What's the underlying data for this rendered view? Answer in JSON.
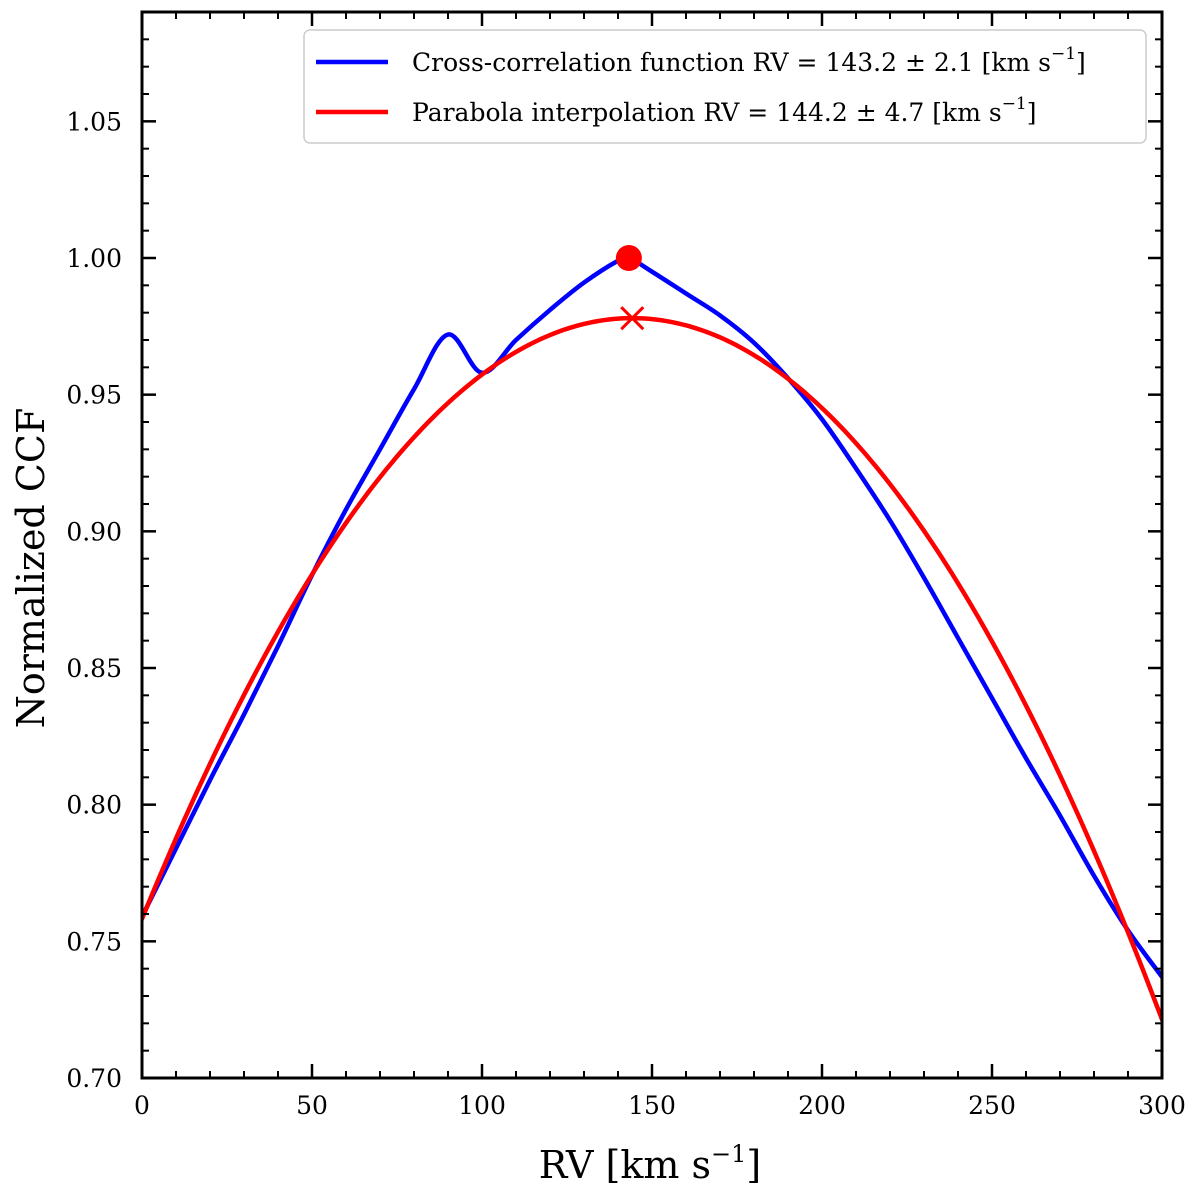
{
  "chart_data": {
    "type": "line",
    "title": "",
    "xlabel": "RV [km s",
    "xlabel_sup": "−1",
    "xlabel_end": "]",
    "ylabel": "Normalized CCF",
    "xlim": [
      0,
      300
    ],
    "ylim": [
      0.7,
      1.09
    ],
    "x_ticks": [
      0,
      50,
      100,
      150,
      200,
      250,
      300
    ],
    "x_tick_labels": [
      "0",
      "50",
      "100",
      "150",
      "200",
      "250",
      "300"
    ],
    "y_ticks": [
      0.7,
      0.75,
      0.8,
      0.85,
      0.9,
      0.95,
      1.0,
      1.05
    ],
    "y_tick_labels": [
      "0.70",
      "0.75",
      "0.80",
      "0.85",
      "0.90",
      "0.95",
      "1.00",
      "1.05"
    ],
    "x_minor_step": 10,
    "y_minor_step": 0.01,
    "grid": false,
    "legend_position": "top-right",
    "series": [
      {
        "name": "Cross-correlation function",
        "legend_main": "Cross-correlation function RV = 143.2 ± 2.1 [km s",
        "legend_sup": "−1",
        "legend_end": "]",
        "color": "#0000ff",
        "x": [
          0,
          10,
          20,
          30,
          40,
          50,
          60,
          70,
          80,
          90,
          100,
          110,
          120,
          130,
          140,
          143.2,
          150,
          160,
          170,
          180,
          190,
          200,
          210,
          220,
          230,
          240,
          250,
          260,
          270,
          280,
          290,
          300
        ],
        "values": [
          0.759,
          0.784,
          0.809,
          0.833,
          0.858,
          0.884,
          0.908,
          0.93,
          0.952,
          0.972,
          0.958,
          0.97,
          0.981,
          0.991,
          0.999,
          1.0,
          0.995,
          0.987,
          0.979,
          0.969,
          0.956,
          0.941,
          0.923,
          0.904,
          0.883,
          0.861,
          0.839,
          0.817,
          0.796,
          0.774,
          0.754,
          0.737
        ],
        "marker": {
          "type": "circle",
          "x": 143.2,
          "y": 1.0
        }
      },
      {
        "name": "Parabola interpolation",
        "legend_main": "Parabola interpolation RV = 144.2 ± 4.7 [km s",
        "legend_sup": "−1",
        "legend_end": "]",
        "color": "#ff0000",
        "parabola": {
          "vertex_x": 144.2,
          "vertex_y": 0.978,
          "curvature": 1.057e-05
        },
        "marker": {
          "type": "x",
          "x": 144.2,
          "y": 0.978
        }
      }
    ]
  }
}
